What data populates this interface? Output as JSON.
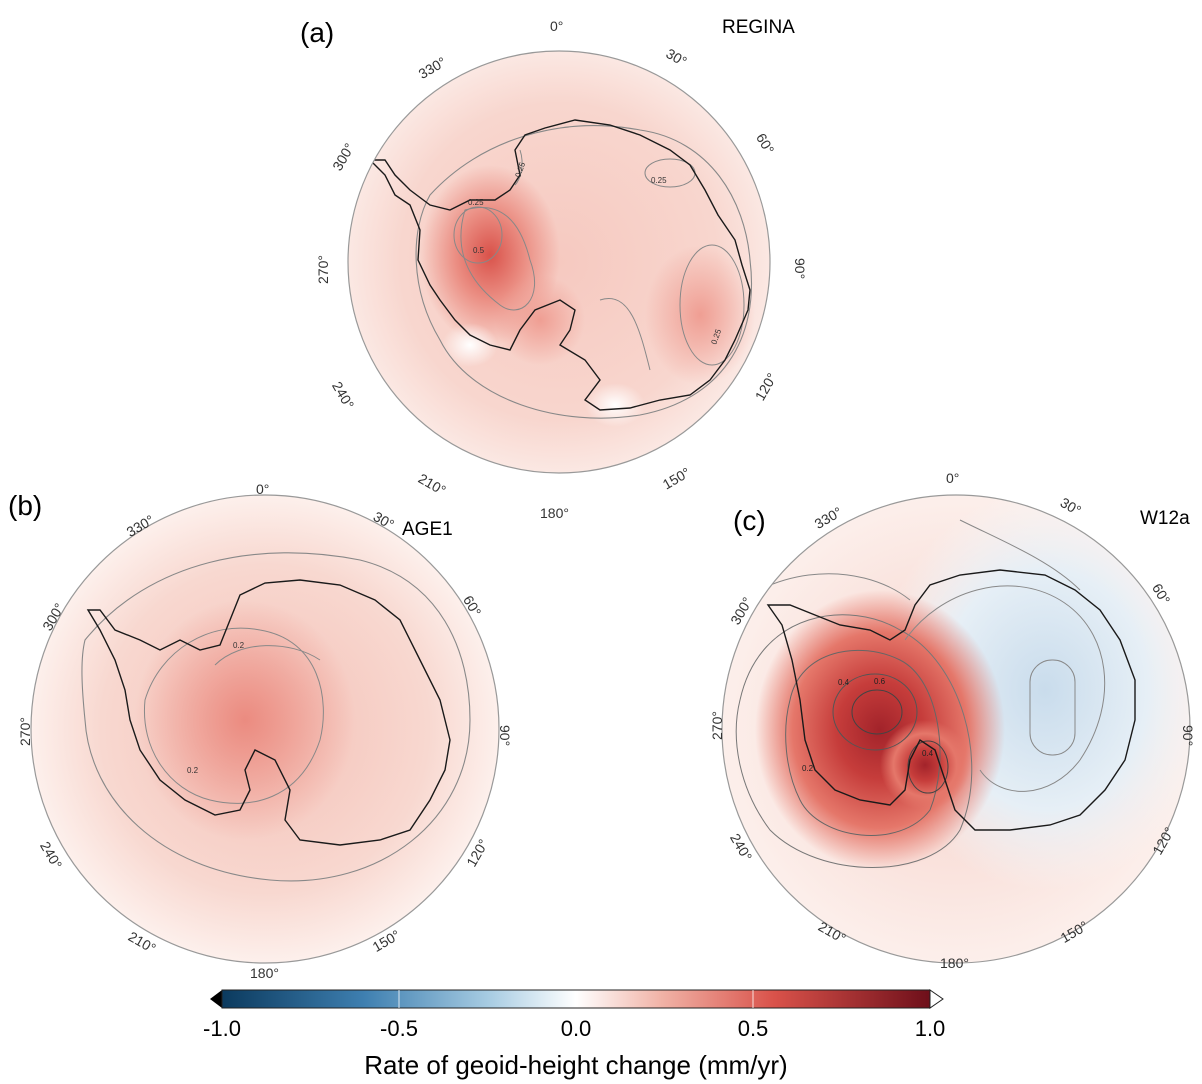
{
  "panels": [
    {
      "id": "a",
      "letter": "(a)",
      "model": "REGINA",
      "contour_labels": [
        "0.25",
        "0.25",
        "0.25",
        "0.25",
        "0.5"
      ],
      "lon_labels": [
        "0°",
        "30°",
        "60°",
        "90°",
        "120°",
        "150°",
        "180°",
        "210°",
        "240°",
        "270°",
        "300°",
        "330°"
      ]
    },
    {
      "id": "b",
      "letter": "(b)",
      "model": "AGE1",
      "contour_labels": [
        "0.2",
        "0.2"
      ],
      "lon_labels": [
        "0°",
        "30°",
        "60°",
        "90°",
        "120°",
        "150°",
        "180°",
        "210°",
        "240°",
        "270°",
        "300°",
        "330°"
      ]
    },
    {
      "id": "c",
      "letter": "(c)",
      "model": "W12a",
      "contour_labels": [
        "0.4",
        "0.6",
        "0.4",
        "0.2"
      ],
      "lon_labels": [
        "0°",
        "30°",
        "60°",
        "90°",
        "120°",
        "150°",
        "180°",
        "210°",
        "240°",
        "270°",
        "300°",
        "330°"
      ]
    }
  ],
  "colorbar": {
    "ticks": [
      "-1.0",
      "-0.5",
      "0.0",
      "0.5",
      "1.0"
    ],
    "title": "Rate of geoid-height change (mm/yr)",
    "colors": [
      "#0b3a5e",
      "#3e7fb0",
      "#a9cde3",
      "#ffffff",
      "#f1b3a7",
      "#d9524a",
      "#6e0f1a"
    ]
  }
}
